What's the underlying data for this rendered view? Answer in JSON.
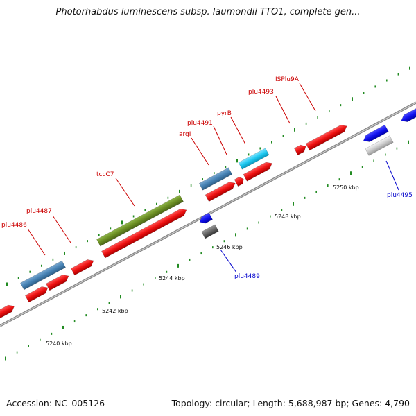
{
  "title": "Photorhabdus luminescens subsp. laumondii TTO1, complete gen...",
  "footer": {
    "accession": "Accession: NC_005126",
    "summary": "Topology: circular; Length: 5,688,987 bp; Genes: 4,790"
  },
  "ticks": [
    {
      "label": "5240 kbp"
    },
    {
      "label": "5242 kbp"
    },
    {
      "label": "5244 kbp"
    },
    {
      "label": "5246 kbp"
    },
    {
      "label": "5248 kbp"
    },
    {
      "label": "5250 kbp"
    }
  ],
  "gene_labels": [
    {
      "name": "plu4486",
      "color": "#cc0000"
    },
    {
      "name": "plu4487",
      "color": "#cc0000"
    },
    {
      "name": "tccC7",
      "color": "#cc0000"
    },
    {
      "name": "argI",
      "color": "#cc0000"
    },
    {
      "name": "plu4491",
      "color": "#cc0000"
    },
    {
      "name": "pyrB",
      "color": "#cc0000"
    },
    {
      "name": "plu4493",
      "color": "#cc0000"
    },
    {
      "name": "ISPlu9A",
      "color": "#cc0000"
    },
    {
      "name": "plu4489",
      "color": "#0000cc"
    },
    {
      "name": "plu4495",
      "color": "#0000cc"
    }
  ],
  "colors": {
    "forward_cds": "#ee1111",
    "reverse_cds": "#1111ee",
    "steelblue_feature": "#4682b4",
    "olive_feature": "#6b8e23",
    "cyan_feature": "#1ec8f0",
    "backbone": "#888888",
    "tick": "#228b22"
  }
}
